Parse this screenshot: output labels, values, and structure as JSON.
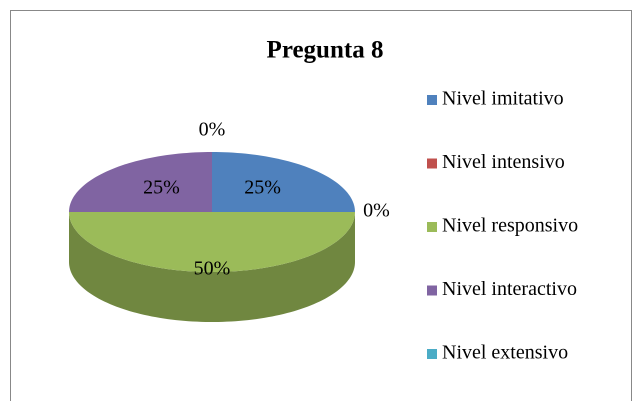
{
  "chart_data": {
    "type": "pie",
    "title": "Pregunta 8",
    "categories": [
      "Nivel imitativo",
      "Nivel intensivo",
      "Nivel responsivo",
      "Nivel interactivo",
      "Nivel extensivo"
    ],
    "values": [
      25,
      0,
      50,
      25,
      0
    ],
    "value_labels": [
      "25%",
      "0%",
      "50%",
      "25%",
      "0%"
    ],
    "colors": [
      "#4f81bd",
      "#c0504d",
      "#9bbb59",
      "#8064a2",
      "#4bacc6"
    ],
    "legend": "right"
  }
}
